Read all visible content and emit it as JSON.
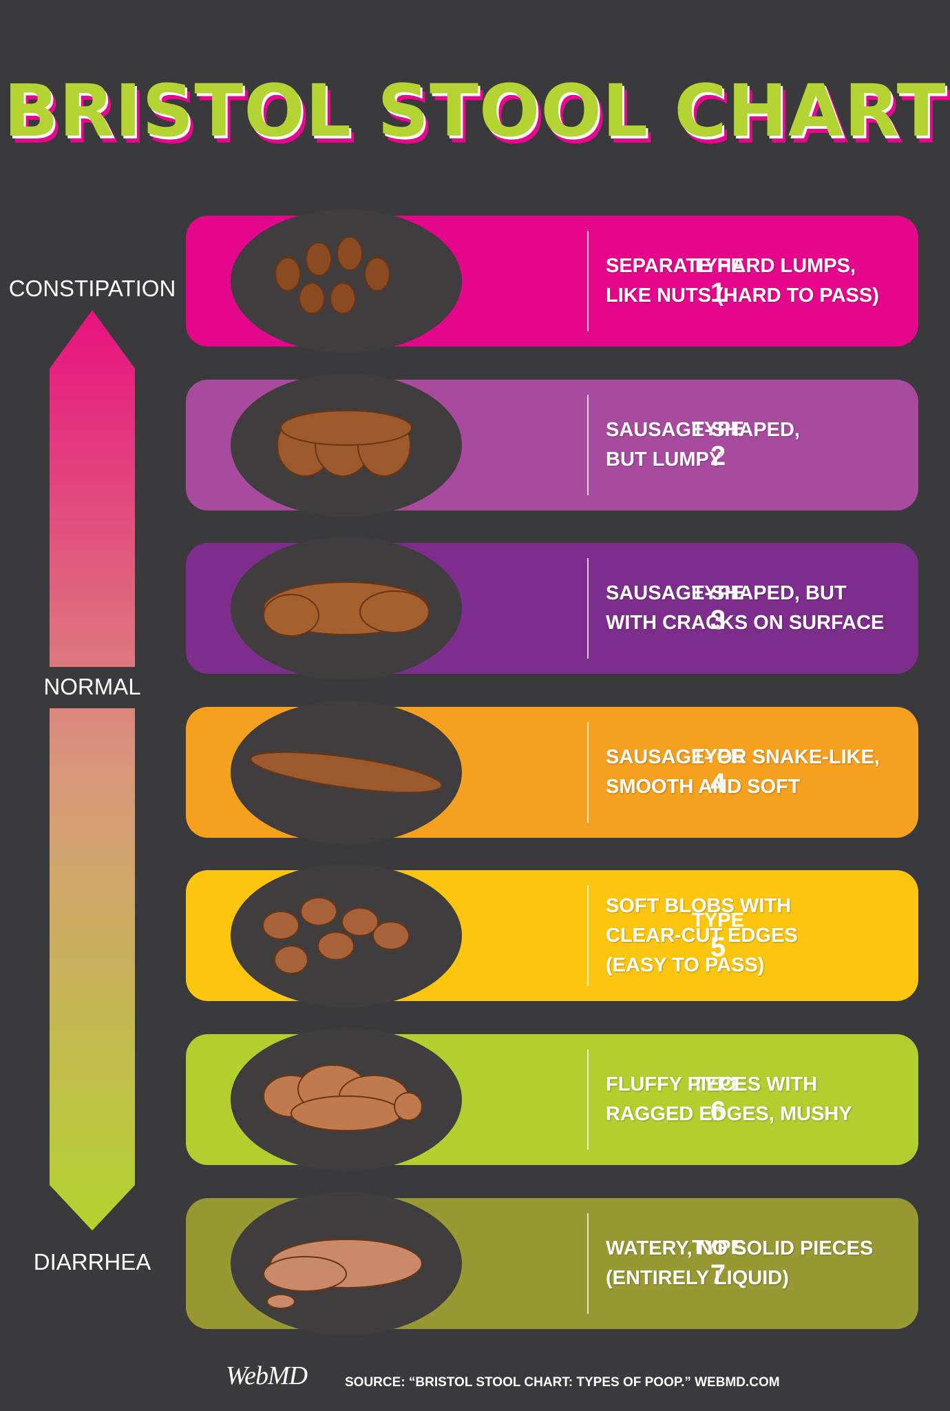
{
  "title": "BRISTOL STOOL CHART",
  "scale": {
    "top": "CONSTIPATION",
    "middle": "NORMAL",
    "bottom": "DIARRHEA"
  },
  "rows": [
    {
      "label": "TYPE",
      "number": 1,
      "color": "#e5078b",
      "lines": [
        "SEPARATE HARD LUMPS,",
        "LIKE NUTS (HARD TO PASS)"
      ]
    },
    {
      "label": "TYPE",
      "number": 2,
      "color": "#a84b9f",
      "lines": [
        "SAUSAGE-SHAPED,",
        "BUT LUMPY"
      ]
    },
    {
      "label": "TYPE",
      "number": 3,
      "color": "#7d2e8c",
      "lines": [
        "SAUSAGE-SHAPED, BUT",
        "WITH CRACKS ON SURFACE"
      ]
    },
    {
      "label": "TYPE",
      "number": 4,
      "color": "#f5a01f",
      "lines": [
        "SAUSAGE- OR SNAKE-LIKE,",
        "SMOOTH AND SOFT"
      ]
    },
    {
      "label": "TYPE",
      "number": 5,
      "color": "#fcc510",
      "lines": [
        "SOFT BLOBS WITH",
        "CLEAR-CUT EDGES",
        "(EASY TO PASS)"
      ]
    },
    {
      "label": "TYPE",
      "number": 6,
      "color": "#b1cf2e",
      "lines": [
        "FLUFFY PIECES WITH",
        "RAGGED EDGES, MUSHY"
      ]
    },
    {
      "label": "TYPE",
      "number": 7,
      "color": "#999934",
      "lines": [
        "WATERY, NO SOLID PIECES",
        "(ENTIRELY LIQUID)"
      ]
    }
  ],
  "footer": {
    "logo": "WebMD",
    "source": "SOURCE: “BRISTOL STOOL CHART: TYPES OF POOP.” WEBMD.COM"
  }
}
